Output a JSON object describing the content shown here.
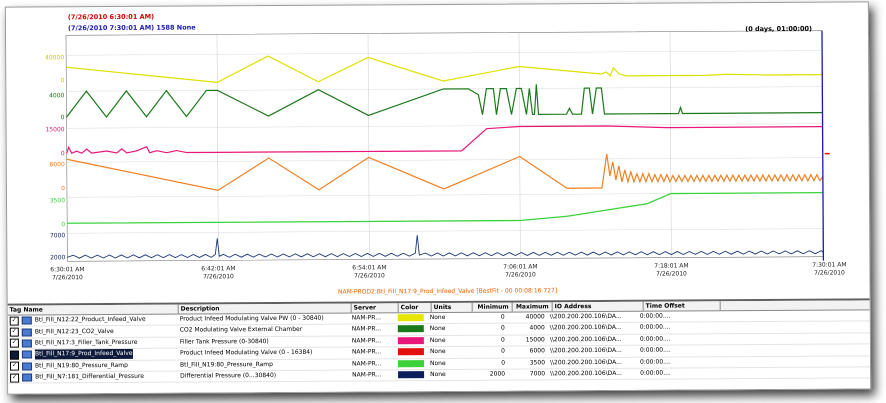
{
  "trend": {
    "start_timestamp": "(7/26/2010 6:30:01 AM)",
    "end_timestamp": "(7/26/2010 7:30:01 AM) 1588 None",
    "duration": "(0 days, 01:00:00)",
    "y_labels": [
      "40000",
      "0",
      "4000",
      "0",
      "15000",
      "0",
      "6000",
      "0",
      "3500",
      "0",
      "7000",
      "2000"
    ],
    "x_ticks": [
      {
        "time": "6:30:01 AM",
        "date": "7/26/2010"
      },
      {
        "time": "6:42:01 AM",
        "date": "7/26/2010"
      },
      {
        "time": "6:54:01 AM",
        "date": "7/26/2010"
      },
      {
        "time": "7:06:01 AM",
        "date": "7/26/2010"
      },
      {
        "time": "7:18:01 AM",
        "date": "7/26/2010"
      },
      {
        "time": "7:30:01 AM",
        "date": "7/26/2010"
      }
    ],
    "caption": "NAM-PROD2:Btl_Fill_N17:9_Prod_Infeed_Valve [BestFit - 00 00:08:16.727]"
  },
  "grid": {
    "headers": [
      "Tag Name",
      "Description",
      "Server",
      "Color",
      "Units",
      "Minimum",
      "Maximum",
      "IO Address",
      "Time Offset"
    ],
    "rows": [
      {
        "tag": "Btl_Fill_N12:22_Product_Infeed_Valve",
        "desc": "Product Infeed Modulating Valve PW (0 - 30840)",
        "server": "NAM-PR...",
        "color": "#e6e600",
        "units": "None",
        "min": "0",
        "max": "40000",
        "io": "\\\\200.200.200.106\\DA...",
        "offset": "0:00:00...."
      },
      {
        "tag": "Btl_Fill_N12:23_CO2_Valve",
        "desc": "CO2 Modulating Valve External Chamber",
        "server": "NAM-PR...",
        "color": "#1a7a1a",
        "units": "None",
        "min": "0",
        "max": "4000",
        "io": "\\\\200.200.200.106\\DA...",
        "offset": "0:00:00...."
      },
      {
        "tag": "Btl_Fill_N17:3_Filler_Tank_Pressure",
        "desc": "Filler Tank Pressure (0-30840)",
        "server": "NAM-PR...",
        "color": "#e8177a",
        "units": "None",
        "min": "0",
        "max": "15000",
        "io": "\\\\200.200.200.106\\DA...",
        "offset": "0:00:00...."
      },
      {
        "tag": "Btl_Fill_N17:9_Prod_Infeed_Valve",
        "desc": "Product Infeed Modulating Valve (0 - 16384)",
        "server": "NAM-PR...",
        "color": "#e31010",
        "units": "None",
        "min": "0",
        "max": "6000",
        "io": "\\\\200.200.200.106\\DA...",
        "offset": "0:00:00...."
      },
      {
        "tag": "Btl_Fill_N19:80_Pressure_Ramp",
        "desc": "Btl_Fill_N19:80_Pressure_Ramp",
        "server": "NAM-PR...",
        "color": "#3cd23c",
        "units": "None",
        "min": "0",
        "max": "3500",
        "io": "\\\\200.200.200.106\\DA...",
        "offset": "0:00:00...."
      },
      {
        "tag": "Btl_Fill_N7:181_Differential_Pressure",
        "desc": "Differential Pressure (0...30840)",
        "server": "NAM-PR...",
        "color": "#0b1f5c",
        "units": "None",
        "min": "2000",
        "max": "7000",
        "io": "\\\\200.200.200.106\\DA...",
        "offset": "0:00:00...."
      }
    ]
  }
}
